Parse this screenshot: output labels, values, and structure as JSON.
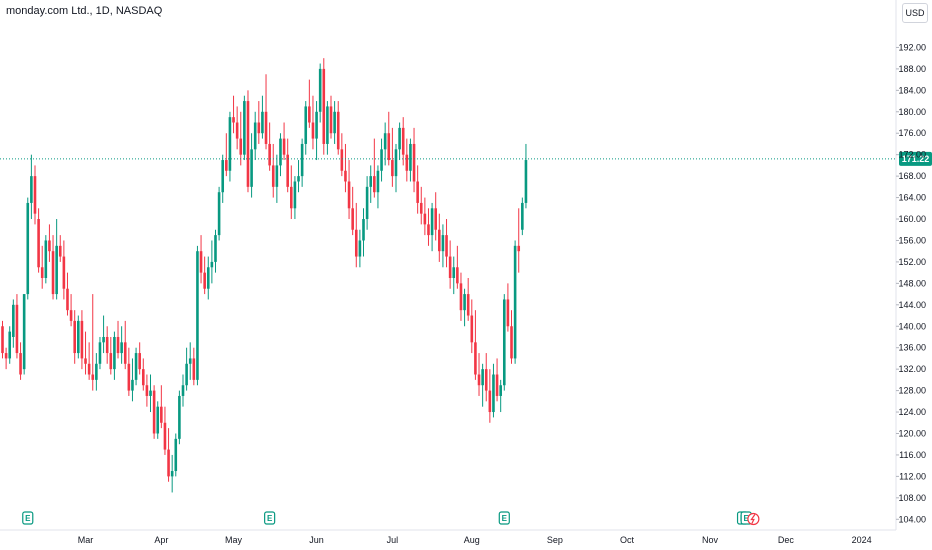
{
  "header": {
    "title": "monday.com Ltd., 1D, NASDAQ",
    "currency": "USD"
  },
  "colors": {
    "up": "#26a69a",
    "down": "#ef5350",
    "upBody": "#089981",
    "downBody": "#f23645",
    "priceLine": "#089981",
    "grid": "#f0f3fa",
    "axisText": "#131722"
  },
  "chart_data": {
    "type": "candlestick",
    "title": "monday.com Ltd., 1D, NASDAQ",
    "y_ticks": [
      104,
      108,
      112,
      116,
      120,
      124,
      128,
      132,
      136,
      140,
      144,
      148,
      152,
      156,
      160,
      164,
      168,
      172,
      176,
      180,
      184,
      188,
      192
    ],
    "ylim": [
      102,
      196
    ],
    "x_ticks": [
      {
        "label": "Mar",
        "index": 23
      },
      {
        "label": "Apr",
        "index": 44
      },
      {
        "label": "May",
        "index": 64
      },
      {
        "label": "Jun",
        "index": 87
      },
      {
        "label": "Jul",
        "index": 108
      },
      {
        "label": "Aug",
        "index": 130
      },
      {
        "label": "Sep",
        "index": 153
      },
      {
        "label": "Oct",
        "index": 173
      },
      {
        "label": "Nov",
        "index": 196
      },
      {
        "label": "Dec",
        "index": 217
      },
      {
        "label": "2024",
        "index": 238
      }
    ],
    "last_price": "171.22",
    "last_value": 171.22,
    "earnings_markers": [
      7,
      74,
      139,
      205,
      206
    ],
    "candles": [
      [
        140,
        141,
        134,
        135
      ],
      [
        135,
        136,
        132,
        134
      ],
      [
        134,
        140,
        133,
        139
      ],
      [
        138,
        145,
        136,
        144
      ],
      [
        144,
        146,
        134,
        135
      ],
      [
        135,
        137,
        130,
        131
      ],
      [
        132,
        146,
        131,
        146
      ],
      [
        146,
        164,
        145,
        163
      ],
      [
        163,
        172,
        160,
        168
      ],
      [
        168,
        170,
        159,
        161
      ],
      [
        160,
        162,
        150,
        151
      ],
      [
        151,
        155,
        147,
        149
      ],
      [
        149,
        157,
        148,
        156
      ],
      [
        156,
        159,
        152,
        154
      ],
      [
        154,
        157,
        145,
        146
      ],
      [
        146,
        160,
        145,
        155
      ],
      [
        155,
        157,
        152,
        153
      ],
      [
        153,
        156,
        145,
        147
      ],
      [
        147,
        150,
        142,
        143
      ],
      [
        143,
        146,
        140,
        141
      ],
      [
        141,
        143,
        133,
        135
      ],
      [
        135,
        142,
        134,
        141
      ],
      [
        141,
        143,
        132,
        134
      ],
      [
        134,
        139,
        131,
        133
      ],
      [
        133,
        137,
        130,
        131
      ],
      [
        131,
        146,
        128,
        130
      ],
      [
        130,
        135,
        128,
        133
      ],
      [
        133,
        138,
        132,
        137
      ],
      [
        137,
        142,
        135,
        138
      ],
      [
        138,
        140,
        133,
        135
      ],
      [
        135,
        138,
        131,
        132
      ],
      [
        132,
        139,
        130,
        138
      ],
      [
        138,
        141,
        134,
        135
      ],
      [
        135,
        140,
        133,
        137
      ],
      [
        137,
        141,
        132,
        133
      ],
      [
        133,
        136,
        127,
        128
      ],
      [
        128,
        134,
        126,
        130
      ],
      [
        130,
        136,
        129,
        135
      ],
      [
        135,
        137,
        131,
        132
      ],
      [
        132,
        134,
        128,
        129
      ],
      [
        129,
        131,
        125,
        127
      ],
      [
        127,
        131,
        124,
        128
      ],
      [
        128,
        129,
        119,
        120
      ],
      [
        120,
        126,
        119,
        125
      ],
      [
        125,
        129,
        121,
        122
      ],
      [
        122,
        125,
        116,
        117
      ],
      [
        117,
        121,
        111,
        112
      ],
      [
        112,
        116,
        109,
        113
      ],
      [
        113,
        120,
        112,
        119
      ],
      [
        119,
        128,
        118,
        127
      ],
      [
        127,
        131,
        125,
        129
      ],
      [
        129,
        136,
        128,
        133
      ],
      [
        133,
        137,
        130,
        134
      ],
      [
        134,
        136,
        129,
        130
      ],
      [
        130,
        155,
        129,
        154
      ],
      [
        154,
        157,
        148,
        150
      ],
      [
        150,
        153,
        146,
        147
      ],
      [
        147,
        153,
        145,
        151
      ],
      [
        151,
        156,
        148,
        152
      ],
      [
        152,
        158,
        150,
        157
      ],
      [
        157,
        166,
        156,
        165
      ],
      [
        165,
        172,
        163,
        171
      ],
      [
        171,
        176,
        168,
        169
      ],
      [
        169,
        180,
        167,
        179
      ],
      [
        179,
        183,
        176,
        178
      ],
      [
        178,
        181,
        173,
        175
      ],
      [
        175,
        180,
        170,
        172
      ],
      [
        172,
        183,
        171,
        182
      ],
      [
        182,
        184,
        165,
        166
      ],
      [
        166,
        176,
        164,
        173
      ],
      [
        173,
        180,
        171,
        178
      ],
      [
        178,
        182,
        174,
        176
      ],
      [
        176,
        183,
        175,
        180
      ],
      [
        180,
        187,
        173,
        174
      ],
      [
        174,
        178,
        169,
        170
      ],
      [
        170,
        174,
        164,
        166
      ],
      [
        166,
        172,
        163,
        170
      ],
      [
        170,
        176,
        168,
        175
      ],
      [
        175,
        178,
        171,
        172
      ],
      [
        172,
        175,
        165,
        166
      ],
      [
        166,
        170,
        160,
        162
      ],
      [
        162,
        168,
        160,
        167
      ],
      [
        167,
        171,
        165,
        168
      ],
      [
        168,
        175,
        166,
        174
      ],
      [
        174,
        182,
        172,
        181
      ],
      [
        181,
        186,
        177,
        178
      ],
      [
        178,
        183,
        173,
        175
      ],
      [
        175,
        182,
        171,
        180
      ],
      [
        180,
        189,
        178,
        188
      ],
      [
        188,
        190,
        172,
        174
      ],
      [
        174,
        182,
        172,
        181
      ],
      [
        181,
        183,
        175,
        176
      ],
      [
        176,
        182,
        174,
        180
      ],
      [
        180,
        182,
        172,
        173
      ],
      [
        173,
        176,
        168,
        169
      ],
      [
        169,
        174,
        165,
        167
      ],
      [
        167,
        171,
        160,
        162
      ],
      [
        162,
        166,
        157,
        158
      ],
      [
        158,
        163,
        151,
        153
      ],
      [
        153,
        158,
        151,
        156
      ],
      [
        156,
        162,
        153,
        160
      ],
      [
        160,
        168,
        158,
        166
      ],
      [
        166,
        170,
        163,
        168
      ],
      [
        168,
        175,
        164,
        165
      ],
      [
        165,
        170,
        162,
        169
      ],
      [
        169,
        175,
        167,
        173
      ],
      [
        173,
        178,
        170,
        176
      ],
      [
        176,
        180,
        170,
        171
      ],
      [
        171,
        177,
        166,
        168
      ],
      [
        168,
        174,
        165,
        173
      ],
      [
        173,
        178,
        171,
        177
      ],
      [
        177,
        179,
        170,
        172
      ],
      [
        172,
        175,
        167,
        169
      ],
      [
        169,
        175,
        167,
        174
      ],
      [
        174,
        177,
        165,
        167
      ],
      [
        167,
        170,
        161,
        163
      ],
      [
        163,
        166,
        159,
        161
      ],
      [
        161,
        164,
        157,
        159
      ],
      [
        159,
        162,
        155,
        157
      ],
      [
        157,
        163,
        154,
        162
      ],
      [
        162,
        165,
        156,
        158
      ],
      [
        158,
        161,
        152,
        154
      ],
      [
        154,
        159,
        151,
        157
      ],
      [
        157,
        160,
        151,
        153
      ],
      [
        153,
        156,
        147,
        149
      ],
      [
        149,
        153,
        146,
        151
      ],
      [
        151,
        155,
        147,
        148
      ],
      [
        148,
        150,
        141,
        143
      ],
      [
        143,
        147,
        140,
        146
      ],
      [
        146,
        149,
        141,
        142
      ],
      [
        142,
        145,
        135,
        137
      ],
      [
        137,
        143,
        130,
        131
      ],
      [
        131,
        135,
        127,
        129
      ],
      [
        129,
        133,
        125,
        132
      ],
      [
        132,
        135,
        126,
        128
      ],
      [
        128,
        132,
        122,
        124
      ],
      [
        124,
        133,
        123,
        131
      ],
      [
        131,
        134,
        126,
        127
      ],
      [
        127,
        130,
        124,
        129
      ],
      [
        129,
        146,
        128,
        145
      ],
      [
        145,
        148,
        139,
        140
      ],
      [
        140,
        143,
        133,
        134
      ],
      [
        134,
        156,
        133,
        155
      ],
      [
        155,
        162,
        150,
        154
      ],
      [
        158,
        164,
        157,
        163
      ],
      [
        163,
        174,
        162,
        171
      ]
    ]
  }
}
